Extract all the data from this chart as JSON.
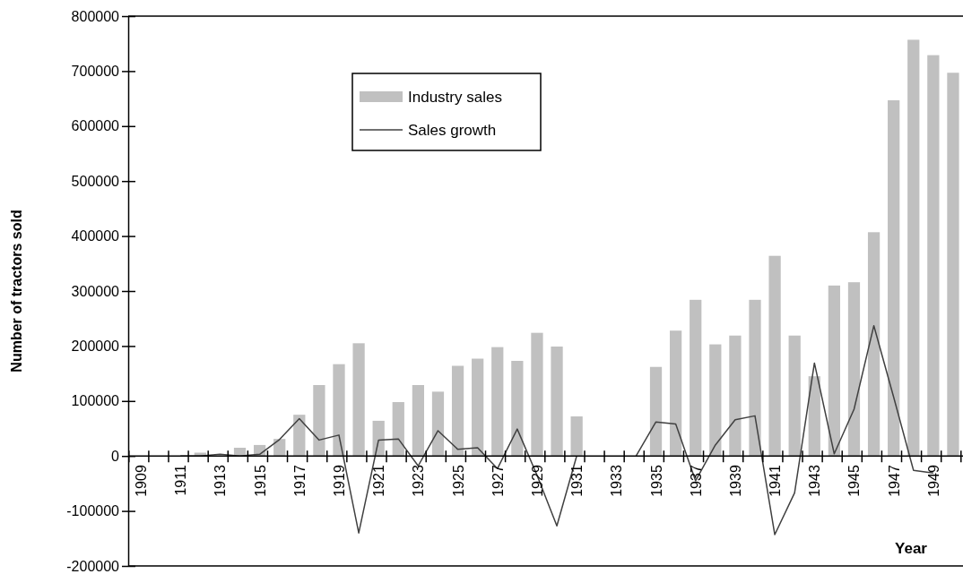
{
  "chart_data": {
    "type": "bar",
    "xlabel": "Year",
    "ylabel": "Number of tractors sold",
    "categories": [
      "1909",
      null,
      "1911",
      null,
      "1913",
      null,
      "1915",
      null,
      "1917",
      null,
      "1919",
      null,
      "1921",
      null,
      "1923",
      null,
      "1925",
      null,
      "1927",
      null,
      "1929",
      null,
      "1931",
      null,
      "1933",
      null,
      "1935",
      null,
      "1937",
      null,
      "1939",
      null,
      "1941",
      null,
      "1943",
      null,
      "1945",
      null,
      "1947",
      null,
      "1949",
      null
    ],
    "series": [
      {
        "name": "Industry sales",
        "color": "#c0c0c0",
        "values": [
          null,
          null,
          null,
          6000,
          null,
          15000,
          20000,
          31000,
          75000,
          129000,
          167000,
          205000,
          64000,
          98000,
          129000,
          117000,
          164000,
          177000,
          198000,
          173000,
          224000,
          199000,
          72000,
          null,
          null,
          null,
          162000,
          228000,
          284000,
          203000,
          219000,
          284000,
          364000,
          219000,
          145000,
          310000,
          316000,
          407000,
          647000,
          757000,
          729000,
          697000
        ]
      },
      {
        "name": "Sales growth",
        "type": "line",
        "color": "#404040",
        "values": [
          null,
          null,
          0,
          0,
          3000,
          0,
          3000,
          30000,
          68000,
          29000,
          38000,
          -140000,
          29000,
          31000,
          -18000,
          46000,
          12000,
          15000,
          -23000,
          49000,
          -35000,
          -127000,
          0,
          null,
          null,
          0,
          62000,
          58000,
          -45000,
          20000,
          66000,
          73000,
          -143000,
          -67000,
          169000,
          4000,
          85000,
          237000,
          107000,
          -26000,
          -31000,
          null
        ]
      }
    ],
    "ylim": [
      -200000,
      800000
    ],
    "yticks": [
      -200000,
      -100000,
      0,
      100000,
      200000,
      300000,
      400000,
      500000,
      600000,
      700000,
      800000
    ],
    "legend": "top",
    "grid": false
  }
}
